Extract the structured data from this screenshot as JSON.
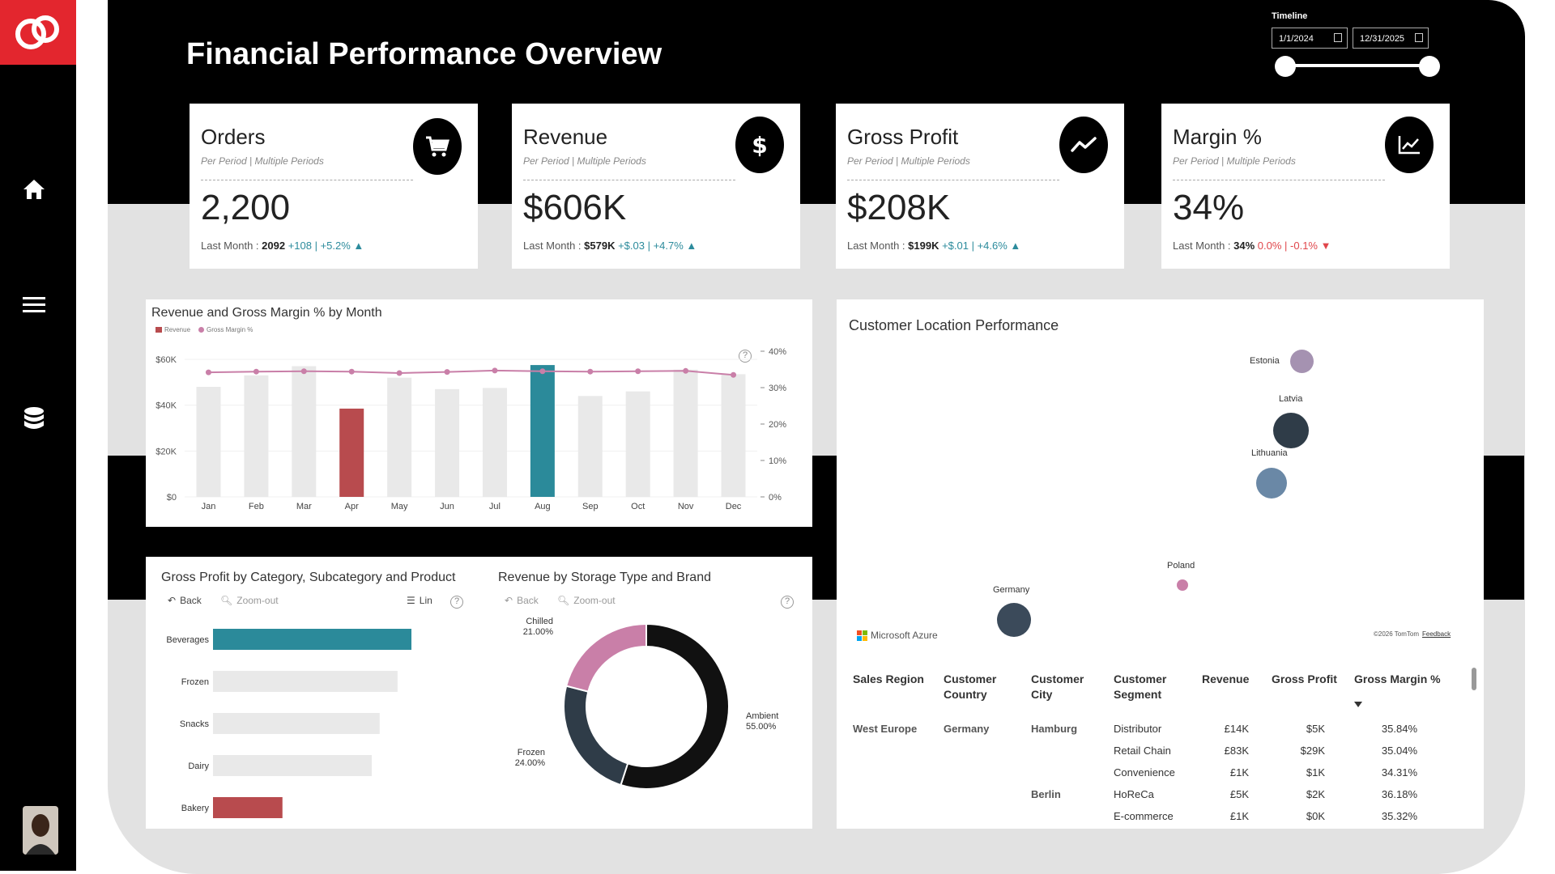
{
  "page": {
    "title": "Financial Performance Overview"
  },
  "sidebar": {
    "items": [
      {
        "icon": "home-icon"
      },
      {
        "icon": "menu-icon"
      },
      {
        "icon": "database-icon"
      }
    ]
  },
  "timeline": {
    "label": "Timeline",
    "start_date": "1/1/2024",
    "end_date": "12/31/2025"
  },
  "kpis": [
    {
      "title": "Orders",
      "subtitle": "Per Period  |  Multiple Periods",
      "value": "2,200",
      "last_label": "Last Month : ",
      "last_value": "2092",
      "delta": " +108 | +5.2% ▲",
      "direction": "up",
      "icon": "cart-icon"
    },
    {
      "title": "Revenue",
      "subtitle": "Per Period  |  Multiple Periods",
      "value": "$606K",
      "last_label": "Last Month : ",
      "last_value": "$579K",
      "delta": " +$.03 | +4.7% ▲",
      "direction": "up",
      "icon": "dollar-icon"
    },
    {
      "title": "Gross Profit",
      "subtitle": "Per Period  |  Multiple Periods",
      "value": "$208K",
      "last_label": "Last Month : ",
      "last_value": "$199K",
      "delta": " +$.01 | +4.6% ▲",
      "direction": "up",
      "icon": "trend-up-icon"
    },
    {
      "title": "Margin %",
      "subtitle": "Per Period  |  Multiple Periods",
      "value": "34%",
      "last_label": "Last Month : ",
      "last_value": "34%",
      "delta": " 0.0% | -0.1% ▼",
      "direction": "down",
      "icon": "line-chart-icon"
    }
  ],
  "colors": {
    "accent_teal": "#2b8a9a",
    "accent_red": "#b84b4e",
    "bar_gray": "#e9e9e9",
    "margin_line": "#c97fa8",
    "up": "#2c8b9c",
    "down": "#e0464b"
  },
  "revenue_chart": {
    "title": "Revenue and Gross Margin % by Month",
    "legend": [
      "Revenue",
      "Gross Margin %"
    ]
  },
  "gp_chart": {
    "title": "Gross Profit by Category, Subcategory and Product",
    "toolbar": {
      "back": "Back",
      "zoom_out": "Zoom-out",
      "lin": "Lin"
    }
  },
  "storage_chart": {
    "title": "Revenue by Storage Type and Brand",
    "toolbar": {
      "back": "Back",
      "zoom_out": "Zoom-out"
    }
  },
  "map": {
    "title": "Customer Location Performance",
    "attribution": "Microsoft Azure",
    "copyright": "©2026 TomTom",
    "feedback": "Feedback",
    "locations": [
      {
        "name": "Estonia",
        "color": "#9b86a8"
      },
      {
        "name": "Latvia",
        "color": "#2f3c48"
      },
      {
        "name": "Lithuania",
        "color": "#6a88a6"
      },
      {
        "name": "Poland",
        "color": "#c97fa8"
      },
      {
        "name": "Germany",
        "color": "#3b4a5a"
      }
    ]
  },
  "table": {
    "headers": [
      "Sales Region",
      "Customer Country",
      "Customer City",
      "Customer Segment",
      "Revenue",
      "Gross Profit",
      "Gross Margin %"
    ],
    "rows": [
      {
        "region": "West Europe",
        "country": "Germany",
        "city": "Hamburg",
        "segment": "Distributor",
        "revenue": "£14K",
        "profit": "$5K",
        "margin": "35.84%"
      },
      {
        "region": "",
        "country": "",
        "city": "",
        "segment": "Retail Chain",
        "revenue": "£83K",
        "profit": "$29K",
        "margin": "35.04%"
      },
      {
        "region": "",
        "country": "",
        "city": "",
        "segment": "Convenience",
        "revenue": "£1K",
        "profit": "$1K",
        "margin": "34.31%"
      },
      {
        "region": "",
        "country": "",
        "city": "Berlin",
        "segment": "HoReCa",
        "revenue": "£5K",
        "profit": "$2K",
        "margin": "36.18%"
      },
      {
        "region": "",
        "country": "",
        "city": "",
        "segment": "E-commerce",
        "revenue": "£1K",
        "profit": "$0K",
        "margin": "35.32%"
      }
    ]
  },
  "chart_data": [
    {
      "type": "bar",
      "title": "Revenue and Gross Margin % by Month",
      "categories": [
        "Jan",
        "Feb",
        "Mar",
        "Apr",
        "May",
        "Jun",
        "Jul",
        "Aug",
        "Sep",
        "Oct",
        "Nov",
        "Dec"
      ],
      "series": [
        {
          "name": "Revenue",
          "values": [
            48000,
            53000,
            57000,
            38500,
            52000,
            47000,
            47500,
            57500,
            44000,
            46000,
            55500,
            53500
          ]
        },
        {
          "name": "Gross Margin %",
          "values": [
            34.2,
            34.4,
            34.5,
            34.4,
            34.0,
            34.3,
            34.7,
            34.5,
            34.4,
            34.5,
            34.6,
            33.5
          ]
        }
      ],
      "y_ticks": [
        "$0",
        "$20K",
        "$40K",
        "$60K"
      ],
      "y2_ticks": [
        "0%",
        "10%",
        "20%",
        "30%",
        "40%"
      ],
      "ylim": [
        0,
        60000
      ],
      "y2lim": [
        0,
        40
      ],
      "highlight": {
        "Apr": "red",
        "Aug": "teal"
      },
      "legend_position": "top-left"
    },
    {
      "type": "bar",
      "orientation": "horizontal",
      "title": "Gross Profit by Category, Subcategory and Product",
      "categories": [
        "Beverages",
        "Frozen",
        "Snacks",
        "Dairy",
        "Bakery"
      ],
      "values": [
        100,
        93,
        84,
        80,
        35
      ],
      "highlight": {
        "Beverages": "teal",
        "Bakery": "red"
      }
    },
    {
      "type": "pie",
      "donut": true,
      "title": "Revenue by Storage Type and Brand",
      "slices": [
        {
          "label": "Ambient",
          "value": 55.0,
          "display": "55.00%",
          "color": "#111111"
        },
        {
          "label": "Frozen",
          "value": 24.0,
          "display": "24.00%",
          "color": "#2f3c48"
        },
        {
          "label": "Chilled",
          "value": 21.0,
          "display": "21.00%",
          "color": "#c97fa8"
        }
      ]
    }
  ]
}
